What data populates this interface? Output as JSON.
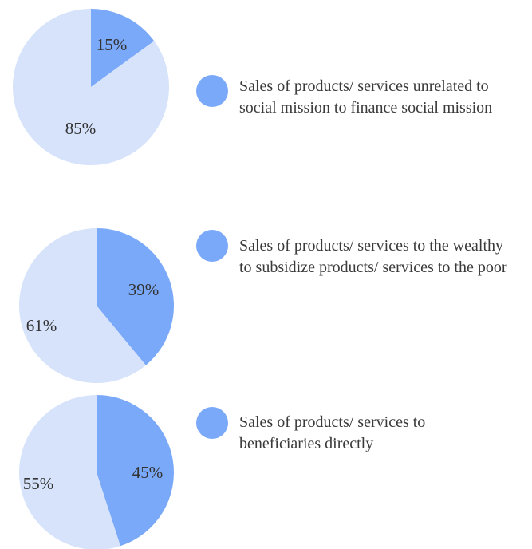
{
  "colors": {
    "primary": "#7aa9f9",
    "secondary": "#d6e3fb"
  },
  "chart_data": [
    {
      "type": "pie",
      "slices": [
        {
          "label": "15%",
          "value": 15,
          "color": "#7aa9f9"
        },
        {
          "label": "85%",
          "value": 85,
          "color": "#d6e3fb"
        }
      ],
      "legend": "Sales of products/ services unrelated to social mission to finance social mission"
    },
    {
      "type": "pie",
      "slices": [
        {
          "label": "39%",
          "value": 39,
          "color": "#7aa9f9"
        },
        {
          "label": "61%",
          "value": 61,
          "color": "#d6e3fb"
        }
      ],
      "legend": "Sales of products/ services to the wealthy to subsidize products/ services to the poor"
    },
    {
      "type": "pie",
      "slices": [
        {
          "label": "45%",
          "value": 45,
          "color": "#7aa9f9"
        },
        {
          "label": "55%",
          "value": 55,
          "color": "#d6e3fb"
        }
      ],
      "legend": "Sales of products/ services to beneficiaries directly"
    }
  ]
}
